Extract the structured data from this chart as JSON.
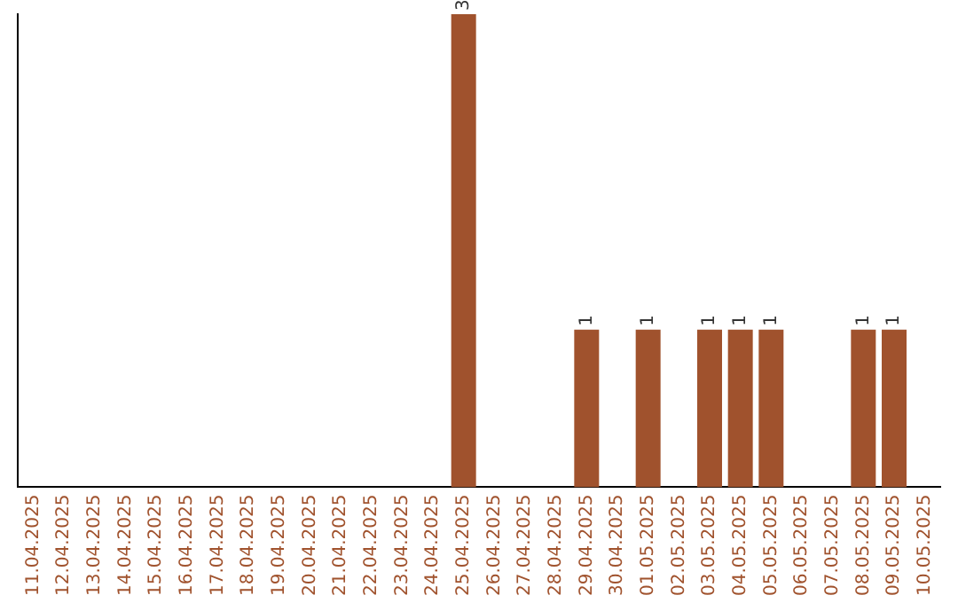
{
  "chart_data": {
    "type": "bar",
    "categories": [
      "11.04.2025",
      "12.04.2025",
      "13.04.2025",
      "14.04.2025",
      "15.04.2025",
      "16.04.2025",
      "17.04.2025",
      "18.04.2025",
      "19.04.2025",
      "20.04.2025",
      "21.04.2025",
      "22.04.2025",
      "23.04.2025",
      "24.04.2025",
      "25.04.2025",
      "26.04.2025",
      "27.04.2025",
      "28.04.2025",
      "29.04.2025",
      "30.04.2025",
      "01.05.2025",
      "02.05.2025",
      "03.05.2025",
      "04.05.2025",
      "05.05.2025",
      "06.05.2025",
      "07.05.2025",
      "08.05.2025",
      "09.05.2025",
      "10.05.2025"
    ],
    "values": [
      null,
      null,
      null,
      null,
      null,
      null,
      null,
      null,
      null,
      null,
      null,
      null,
      null,
      null,
      3,
      null,
      null,
      null,
      1,
      null,
      1,
      null,
      1,
      1,
      1,
      null,
      null,
      1,
      1,
      null
    ],
    "data_labels": true,
    "color": "#a0522d",
    "grid": false,
    "legend": false
  }
}
